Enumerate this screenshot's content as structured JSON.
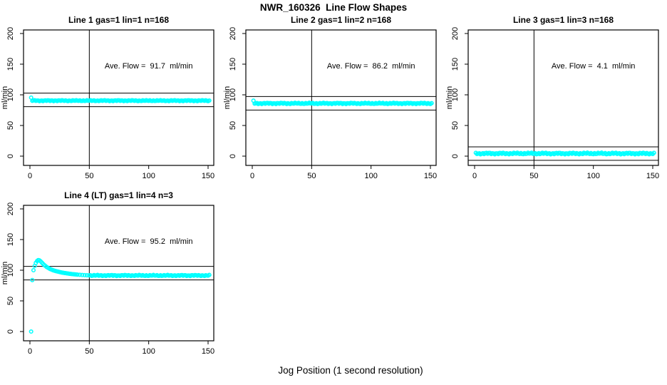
{
  "window": {
    "main_title": "NWR_160326  Line Flow Shapes",
    "outer_x_label": "Jog Position (1 second resolution)"
  },
  "chart_data": [
    {
      "type": "scatter",
      "title": "Line 1 gas=1 lin=1 n=168",
      "line_number": 1,
      "gas": 1,
      "lin": 1,
      "n": 168,
      "ylabel": "ml/min",
      "annotation": "Ave. Flow =  91.7  ml/min",
      "ave_flow_ml_min": 91.7,
      "xlim": [
        0,
        150
      ],
      "ylim": [
        0,
        200
      ],
      "xticks": [
        0,
        50,
        100,
        150
      ],
      "yticks": [
        0,
        50,
        100,
        150,
        200
      ],
      "ref_vline_x": 50,
      "ref_hlines": [
        102.7,
        80.7
      ],
      "marker_color": "#00ffff",
      "series": {
        "name": "flow",
        "start_points": [
          [
            1,
            95.5
          ]
        ],
        "transient": [],
        "steady": {
          "x_from": 2,
          "x_to": 151,
          "value": 90.5,
          "jitter": 0.7
        }
      }
    },
    {
      "type": "scatter",
      "title": "Line 2 gas=1 lin=2 n=168",
      "line_number": 2,
      "gas": 1,
      "lin": 2,
      "n": 168,
      "ylabel": "ml/min",
      "annotation": "Ave. Flow =  86.2  ml/min",
      "ave_flow_ml_min": 86.2,
      "xlim": [
        0,
        150
      ],
      "ylim": [
        0,
        200
      ],
      "xticks": [
        0,
        50,
        100,
        150
      ],
      "yticks": [
        0,
        50,
        100,
        150,
        200
      ],
      "ref_vline_x": 50,
      "ref_hlines": [
        97.2,
        75.2
      ],
      "marker_color": "#00ffff",
      "series": {
        "name": "flow",
        "start_points": [
          [
            1,
            90.5
          ]
        ],
        "transient": [],
        "steady": {
          "x_from": 2,
          "x_to": 151,
          "value": 86.0,
          "jitter": 0.9
        }
      }
    },
    {
      "type": "scatter",
      "title": "Line 3 gas=1 lin=3 n=168",
      "line_number": 3,
      "gas": 1,
      "lin": 3,
      "n": 168,
      "ylabel": "ml/min",
      "annotation": "Ave. Flow =  4.1  ml/min",
      "ave_flow_ml_min": 4.1,
      "xlim": [
        0,
        150
      ],
      "ylim": [
        0,
        200
      ],
      "xticks": [
        0,
        50,
        100,
        150
      ],
      "yticks": [
        0,
        50,
        100,
        150,
        200
      ],
      "ref_vline_x": 50,
      "ref_hlines": [
        15.1,
        -6.9
      ],
      "marker_color": "#00ffff",
      "series": {
        "name": "flow",
        "start_points": [],
        "transient": [],
        "steady": {
          "x_from": 1,
          "x_to": 151,
          "value": 4.3,
          "jitter": 1.2
        }
      }
    },
    {
      "type": "scatter",
      "title": "Line 4 (LT) gas=1 lin=4 n=3",
      "line_number": 4,
      "gas": 1,
      "lin": 4,
      "n": 3,
      "ylabel": "ml/min",
      "annotation": "Ave. Flow =  95.2  ml/min",
      "ave_flow_ml_min": 95.2,
      "xlim": [
        0,
        150
      ],
      "ylim": [
        0,
        200
      ],
      "xticks": [
        0,
        50,
        100,
        150
      ],
      "yticks": [
        0,
        50,
        100,
        150,
        200
      ],
      "ref_vline_x": 50,
      "ref_hlines": [
        106.2,
        84.2
      ],
      "marker_color": "#00ffff",
      "series": {
        "name": "flow",
        "start_points": [
          [
            1,
            0
          ],
          [
            2,
            84
          ]
        ],
        "transient": [
          [
            3,
            100
          ],
          [
            4,
            107
          ],
          [
            5,
            112
          ],
          [
            6,
            115
          ],
          [
            7,
            116.5
          ],
          [
            8,
            116
          ],
          [
            9,
            114.5
          ],
          [
            10,
            112.5
          ],
          [
            11,
            110.5
          ],
          [
            12,
            108.5
          ],
          [
            13,
            107
          ],
          [
            14,
            105.5
          ],
          [
            15,
            104.2
          ],
          [
            16,
            103
          ],
          [
            17,
            102
          ],
          [
            18,
            101.2
          ],
          [
            19,
            100.4
          ],
          [
            20,
            99.7
          ],
          [
            21,
            99.1
          ],
          [
            22,
            98.5
          ],
          [
            23,
            98
          ],
          [
            24,
            97.5
          ],
          [
            25,
            97
          ],
          [
            26,
            96.6
          ],
          [
            27,
            96.2
          ],
          [
            28,
            95.8
          ],
          [
            29,
            95.5
          ],
          [
            30,
            95.2
          ],
          [
            31,
            94.9
          ],
          [
            32,
            94.6
          ],
          [
            33,
            94.3
          ],
          [
            34,
            94.1
          ],
          [
            35,
            93.8
          ],
          [
            36,
            93.6
          ],
          [
            37,
            93.4
          ],
          [
            38,
            93.2
          ],
          [
            39,
            93
          ],
          [
            40,
            92.8
          ],
          [
            42,
            92.5
          ],
          [
            44,
            92.2
          ],
          [
            46,
            92
          ],
          [
            48,
            91.8
          ],
          [
            50,
            91.6
          ]
        ],
        "steady": {
          "x_from": 51,
          "x_to": 151,
          "value": 91.4,
          "jitter": 0.8
        }
      }
    }
  ]
}
